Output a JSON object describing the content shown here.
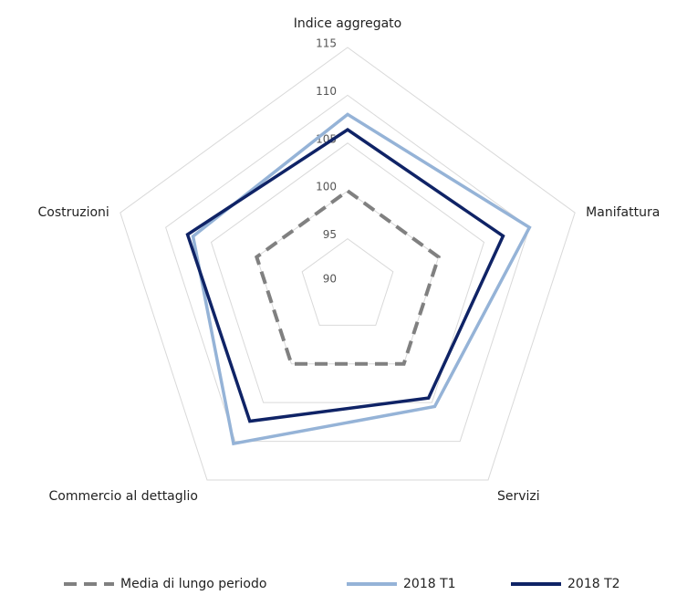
{
  "chart_data": {
    "type": "radar",
    "categories": [
      "Indice aggregato",
      "Manifattura",
      "Servizi",
      "Commercio al dettaglio",
      "Costruzioni"
    ],
    "rlim": [
      90,
      115
    ],
    "rticks": [
      90,
      95,
      100,
      105,
      110,
      115
    ],
    "series": [
      {
        "name": "Media di lungo periodo",
        "color": "#808080",
        "dash": true,
        "values": [
          100,
          100,
          100,
          100,
          100
        ]
      },
      {
        "name": "2018 T1",
        "color": "#95b3d7",
        "values": [
          108,
          110,
          105.5,
          110.3,
          107
        ]
      },
      {
        "name": "2018 T2",
        "color": "#0f2366",
        "values": [
          106.4,
          107.1,
          104.4,
          107.4,
          107.6
        ]
      }
    ]
  }
}
